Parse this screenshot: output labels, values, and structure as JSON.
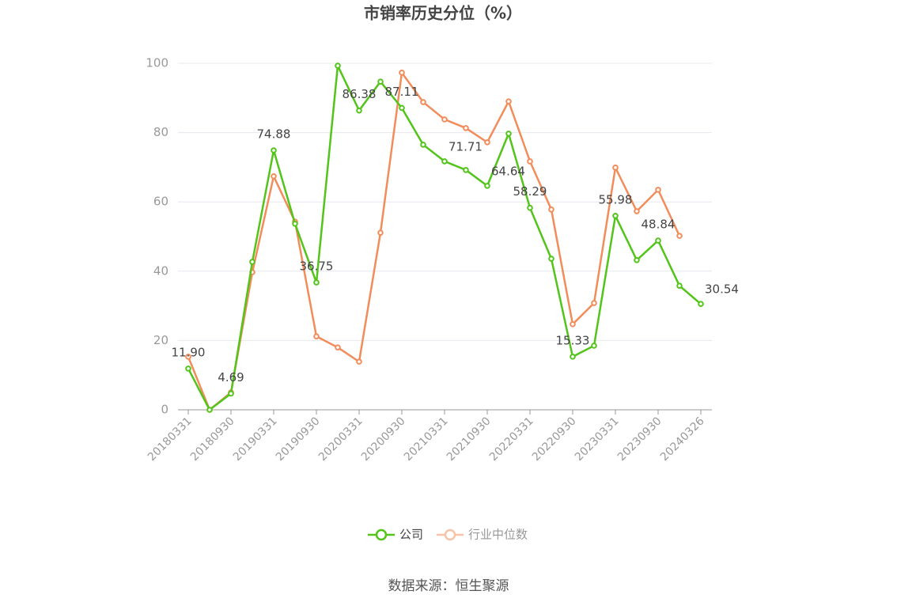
{
  "chart_data": {
    "type": "line",
    "title": "市销率历史分位（%）",
    "source": "数据来源：恒生聚源",
    "categories": [
      "20180331",
      null,
      "20180930",
      null,
      "20190331",
      null,
      "20190930",
      null,
      "20200331",
      null,
      "20200930",
      null,
      "20210331",
      null,
      "20210930",
      null,
      "20220331",
      null,
      "20220930",
      null,
      "20230331",
      null,
      "20230930",
      null,
      "20240326"
    ],
    "ylim": [
      0,
      100
    ],
    "yticks": [
      0,
      20,
      40,
      60,
      80,
      100
    ],
    "grid": true,
    "legend": "bottom",
    "series": [
      {
        "name": "公司",
        "color": "#52c41a",
        "values": [
          11.9,
          0,
          4.69,
          42.7,
          74.88,
          53.7,
          36.75,
          99.3,
          86.38,
          94.7,
          87.11,
          76.5,
          71.71,
          69.2,
          64.64,
          79.7,
          58.29,
          43.6,
          15.33,
          18.5,
          55.98,
          43.2,
          48.84,
          35.8,
          30.54
        ],
        "value_labels": [
          "11.90",
          null,
          "4.69",
          null,
          "74.88",
          null,
          "36.75",
          null,
          "86.38",
          null,
          "87.11",
          null,
          "71.71",
          null,
          "64.64",
          null,
          "58.29",
          null,
          "15.33",
          null,
          "55.98",
          null,
          "48.84",
          null,
          "30.54"
        ]
      },
      {
        "name": "行业中位数",
        "color": "#f28c5a",
        "values": [
          15.3,
          0,
          5.0,
          39.7,
          67.4,
          54.3,
          21.2,
          18.0,
          13.9,
          51.1,
          97.3,
          88.8,
          83.8,
          81.3,
          77.2,
          89.0,
          71.7,
          57.8,
          24.7,
          30.8,
          69.9,
          57.3,
          63.5,
          50.2,
          null
        ]
      }
    ]
  }
}
